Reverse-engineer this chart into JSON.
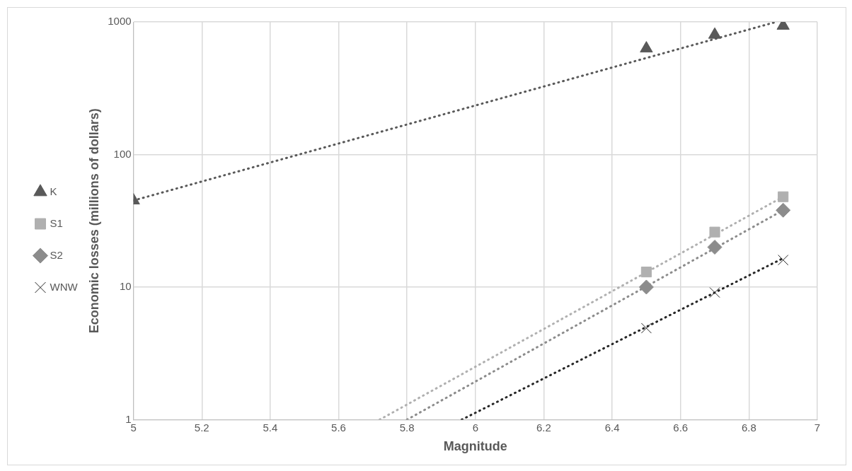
{
  "chart_data": {
    "type": "scatter",
    "xlabel": "Magnitude",
    "ylabel": "Economic losses (millions of dollars)",
    "log": "y",
    "grid": true,
    "legend": "left",
    "xlim": [
      5,
      7
    ],
    "xticks": [
      5,
      5.2,
      5.4,
      5.6,
      5.8,
      6,
      6.2,
      6.4,
      6.6,
      6.8,
      7
    ],
    "ylim": [
      1,
      1000
    ],
    "yticks": [
      1,
      10,
      100,
      1000
    ],
    "series": [
      {
        "name": "K",
        "type": "scatter",
        "marker": "triangle",
        "color": "#595959",
        "x": [
          5,
          6.5,
          6.7,
          6.9
        ],
        "values": [
          45,
          630,
          800,
          935
        ]
      },
      {
        "name": "S1",
        "type": "scatter",
        "marker": "square",
        "color": "#b0b0b0",
        "x": [
          6.5,
          6.7,
          6.9
        ],
        "values": [
          13,
          26,
          48
        ]
      },
      {
        "name": "S2",
        "type": "scatter",
        "marker": "diamond",
        "color": "#8c8c8c",
        "x": [
          6.5,
          6.7,
          6.9
        ],
        "values": [
          10,
          20,
          38
        ]
      },
      {
        "name": "WNW",
        "type": "scatter",
        "marker": "cross",
        "color": "#262626",
        "x": [
          6.5,
          6.7,
          6.9
        ],
        "values": [
          4.9,
          9.1,
          16
        ]
      },
      {
        "type": "line",
        "marker": "none",
        "line_style": "dotted",
        "color": "#595959",
        "x": [
          5,
          6.88
        ],
        "values": [
          45,
          1000
        ]
      },
      {
        "type": "line",
        "marker": "none",
        "line_style": "dotted",
        "color": "#b0b0b0",
        "x": [
          5.72,
          6.9
        ],
        "values": [
          1,
          48
        ]
      },
      {
        "type": "line",
        "marker": "none",
        "line_style": "dotted",
        "color": "#8c8c8c",
        "x": [
          5.8,
          6.9
        ],
        "values": [
          1,
          38
        ]
      },
      {
        "type": "line",
        "marker": "none",
        "line_style": "dotted",
        "color": "#262626",
        "x": [
          5.96,
          6.9
        ],
        "values": [
          1,
          16.5
        ]
      }
    ]
  }
}
